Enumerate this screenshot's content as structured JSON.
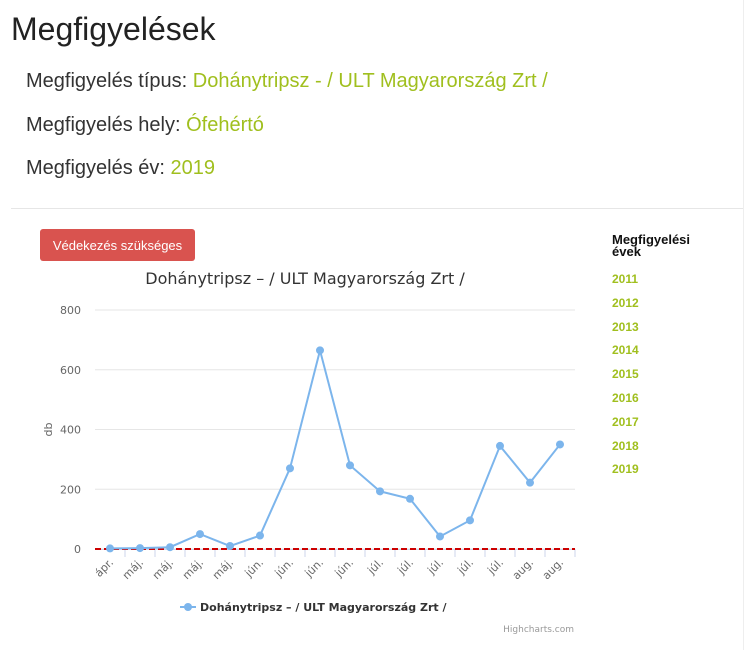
{
  "page": {
    "title": "Megfigyelések"
  },
  "info": {
    "type_label": "Megfigyelés típus:",
    "type_value": "Dohánytripsz - / ULT Magyarország Zrt /",
    "place_label": "Megfigyelés hely:",
    "place_value": "Ófehértó",
    "year_label": "Megfigyelés év:",
    "year_value": "2019"
  },
  "alert_button": {
    "label": "Védekezés szükséges"
  },
  "years_panel": {
    "title": "Megfigyelési évek",
    "years": [
      "2011",
      "2012",
      "2013",
      "2014",
      "2015",
      "2016",
      "2017",
      "2018",
      "2019"
    ]
  },
  "colors": {
    "accent": "#a0bf1e",
    "alert": "#d9534f",
    "series": "#7cb5ec",
    "threshold": "#cc0000"
  },
  "chart_data": {
    "type": "line",
    "title": "Dohánytripsz – / ULT Magyarország Zrt /",
    "xlabel": "",
    "ylabel": "db",
    "categories": [
      "ápr.",
      "máj.",
      "máj.",
      "máj.",
      "máj.",
      "jún.",
      "jún.",
      "jún.",
      "jún.",
      "júl.",
      "júl.",
      "júl.",
      "júl.",
      "júl.",
      "aug.",
      "aug."
    ],
    "series": [
      {
        "name": "Dohánytripsz – / ULT Magyarország Zrt /",
        "values": [
          2,
          3,
          6,
          50,
          10,
          45,
          270,
          665,
          280,
          193,
          168,
          42,
          96,
          345,
          222,
          350
        ]
      }
    ],
    "threshold": 0,
    "ylim": [
      0,
      800
    ],
    "yticks": [
      0,
      200,
      400,
      600,
      800
    ],
    "grid": true,
    "legend": "bottom",
    "credits": "Highcharts.com"
  }
}
